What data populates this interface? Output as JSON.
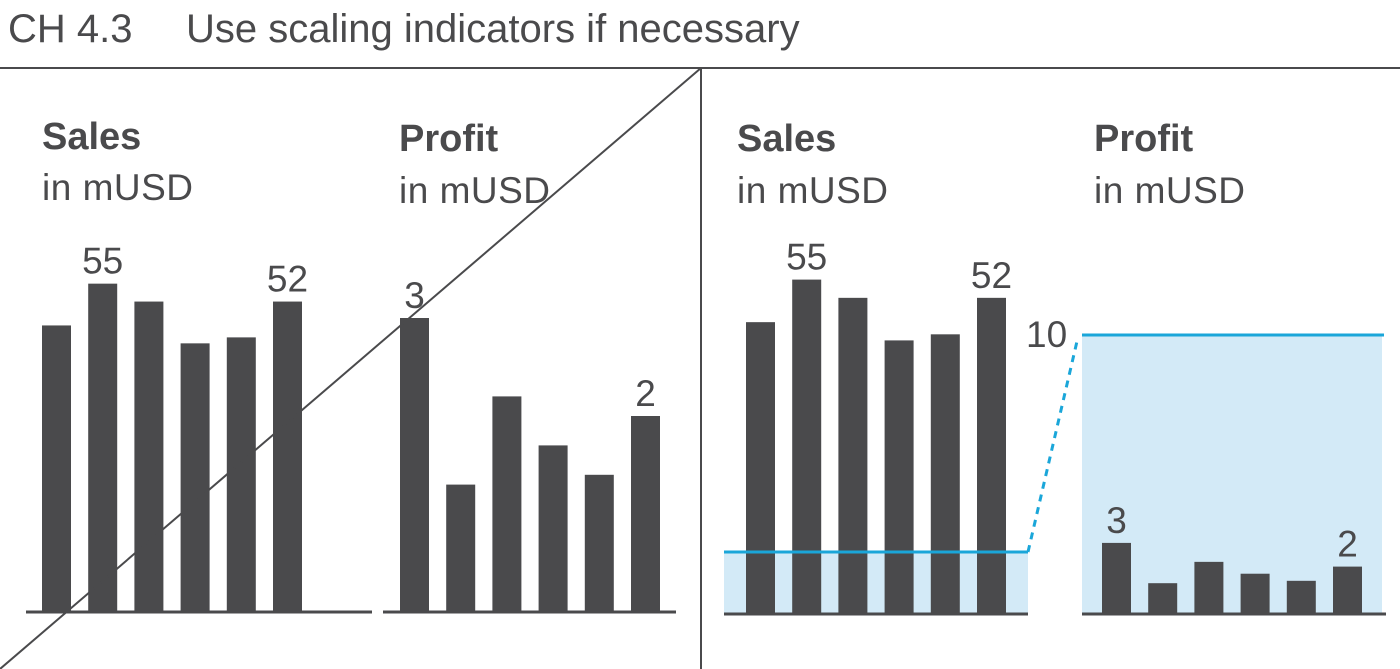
{
  "header": {
    "chapter": "CH 4.3",
    "title": "Use scaling indicators if necessary"
  },
  "colors": {
    "bar": "#4a4a4c",
    "text": "#4a4a4c",
    "accent": "#1aa6d9",
    "accent_fill": "#d3eaf7",
    "rule": "#4a4a4c"
  },
  "chart_data": [
    {
      "type": "bar",
      "panel": "left (crossed out)",
      "title": "Sales",
      "subtitle": "in mUSD",
      "categories": [
        "1",
        "2",
        "3",
        "4",
        "5",
        "6"
      ],
      "values": [
        48,
        55,
        52,
        45,
        46,
        52
      ],
      "data_labels": {
        "1": "55",
        "5": "52"
      },
      "ylim": [
        0,
        60
      ]
    },
    {
      "type": "bar",
      "panel": "left (crossed out)",
      "title": "Profit",
      "subtitle": "in mUSD",
      "categories": [
        "1",
        "2",
        "3",
        "4",
        "5",
        "6"
      ],
      "values": [
        3,
        1.3,
        2.2,
        1.7,
        1.4,
        2
      ],
      "data_labels": {
        "0": "3",
        "5": "2"
      },
      "ylim": [
        0,
        3
      ]
    },
    {
      "type": "bar",
      "panel": "right",
      "title": "Sales",
      "subtitle": "in mUSD",
      "categories": [
        "1",
        "2",
        "3",
        "4",
        "5",
        "6"
      ],
      "values": [
        48,
        55,
        52,
        45,
        46,
        52
      ],
      "data_labels": {
        "1": "55",
        "5": "52"
      },
      "ylim": [
        0,
        60
      ],
      "scale_band": [
        0,
        10
      ]
    },
    {
      "type": "bar",
      "panel": "right",
      "title": "Profit",
      "subtitle": "in mUSD",
      "categories": [
        "1",
        "2",
        "3",
        "4",
        "5",
        "6"
      ],
      "values": [
        3,
        1.3,
        2.2,
        1.7,
        1.4,
        2
      ],
      "data_labels": {
        "0": "3",
        "5": "2"
      },
      "ylim": [
        0,
        10
      ],
      "scale_label": "10"
    }
  ]
}
